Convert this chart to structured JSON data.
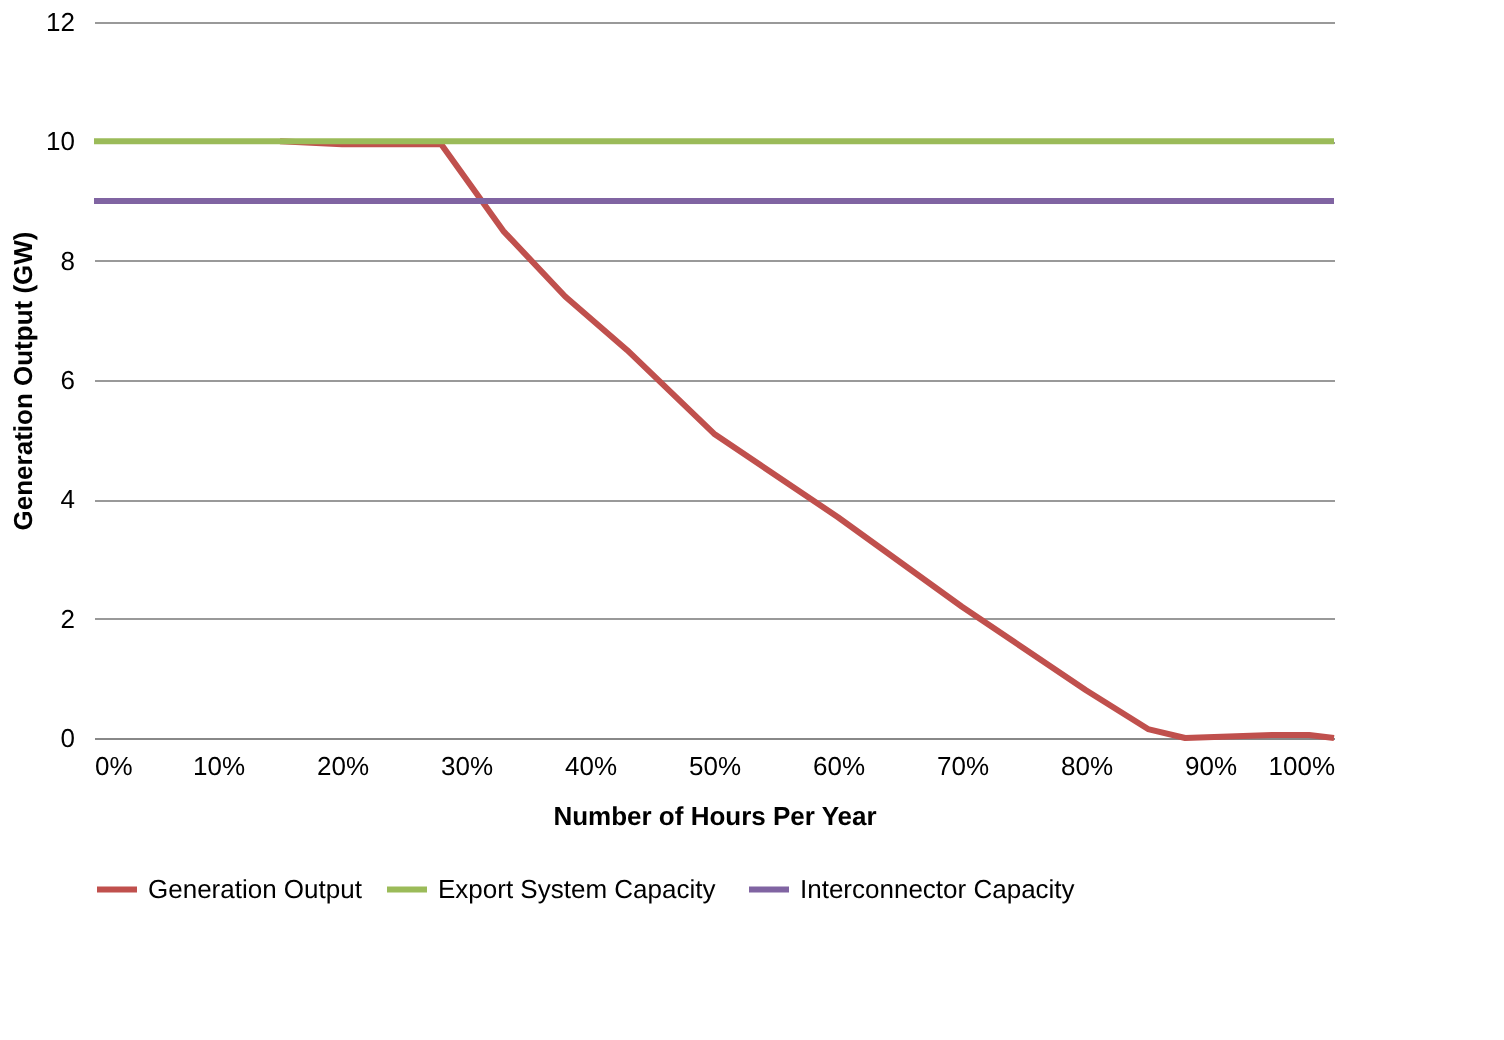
{
  "chart_data": {
    "type": "line",
    "xlabel": "Number of Hours Per Year",
    "ylabel": "Generation Output (GW)",
    "xlim": [
      0,
      100
    ],
    "xticks": [
      {
        "value": 0,
        "label": "0%"
      },
      {
        "value": 10,
        "label": "10%"
      },
      {
        "value": 20,
        "label": "20%"
      },
      {
        "value": 30,
        "label": "30%"
      },
      {
        "value": 40,
        "label": "40%"
      },
      {
        "value": 50,
        "label": "50%"
      },
      {
        "value": 60,
        "label": "60%"
      },
      {
        "value": 70,
        "label": "70%"
      },
      {
        "value": 80,
        "label": "80%"
      },
      {
        "value": 90,
        "label": "90%"
      },
      {
        "value": 100,
        "label": "100%"
      }
    ],
    "ylim": [
      0,
      12
    ],
    "yticks": [
      0,
      2,
      4,
      6,
      8,
      10,
      12
    ],
    "grid": "y",
    "legend": "bottom",
    "marker": "none",
    "line_style": "solid",
    "series": [
      {
        "name": "Generation Output",
        "color": "#c0504d",
        "x": [
          15,
          20,
          28,
          33,
          38,
          43,
          50,
          60,
          70,
          75,
          80,
          85,
          88,
          95,
          98,
          100
        ],
        "values": [
          10,
          9.95,
          9.95,
          8.5,
          7.4,
          6.5,
          5.1,
          3.7,
          2.2,
          1.5,
          0.8,
          0.15,
          0,
          0.05,
          0.05,
          0
        ]
      },
      {
        "name": "Export System  Capacity",
        "color": "#9bbb59",
        "x": [
          0,
          100
        ],
        "values": [
          10,
          10
        ]
      },
      {
        "name": "Interconnector Capacity",
        "color": "#8064a2",
        "x": [
          0,
          100
        ],
        "values": [
          9,
          9
        ]
      }
    ]
  }
}
